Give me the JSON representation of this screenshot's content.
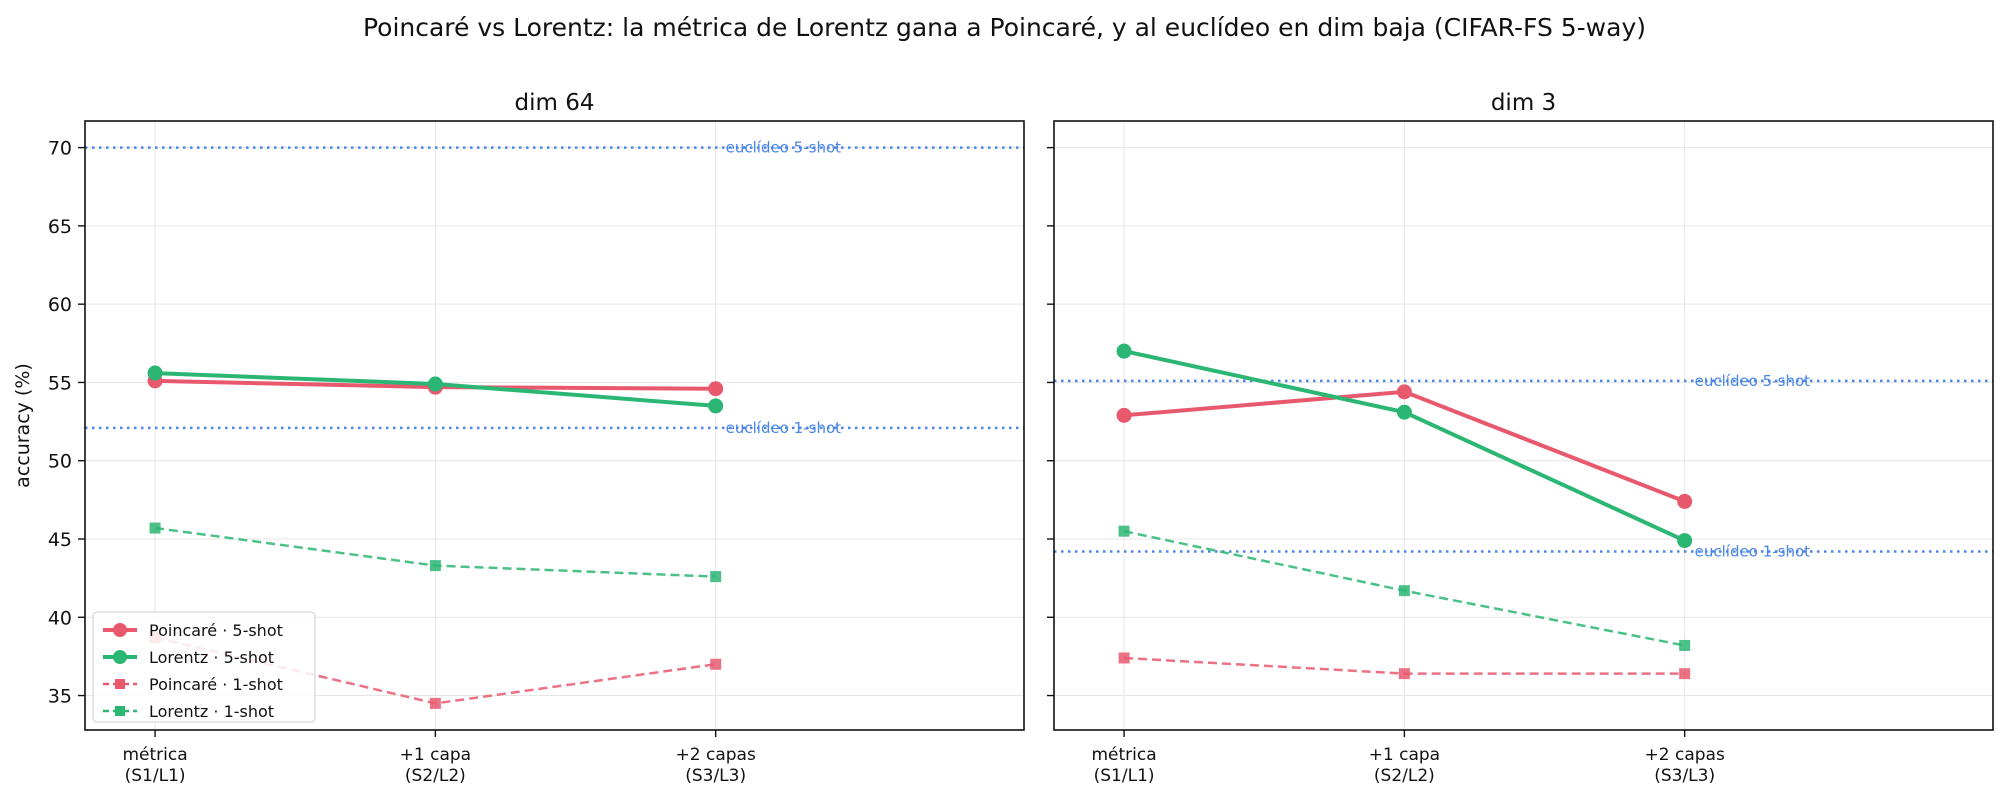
{
  "figure": {
    "suptitle": "Poincaré vs Lorentz: la métrica de Lorentz gana a Poincaré, y al euclídeo en dim baja (CIFAR-FS 5-way)"
  },
  "chart_data": [
    {
      "type": "line",
      "title": "dim 64",
      "ylabel": "accuracy (%)",
      "xlabel": "",
      "categories": [
        "métrica\n(S1/L1)",
        "+1 capa\n(S2/L2)",
        "+2 capas\n(S3/L3)"
      ],
      "xlim": [
        -0.25,
        3.1
      ],
      "ylim": [
        32.8,
        71.7
      ],
      "yticks": [
        35,
        40,
        45,
        50,
        55,
        60,
        65,
        70
      ],
      "grid": true,
      "legend": "lower-left",
      "series": [
        {
          "name": "Poincaré · 5-shot",
          "values": [
            55.1,
            54.7,
            54.6
          ],
          "color": "#e8596e",
          "style": "solid",
          "marker": "circle"
        },
        {
          "name": "Lorentz · 5-shot",
          "values": [
            55.6,
            54.9,
            53.5
          ],
          "color": "#2bb673",
          "style": "solid",
          "marker": "circle"
        },
        {
          "name": "Poincaré · 1-shot",
          "values": [
            38.7,
            34.5,
            37.0
          ],
          "color": "#e8596e",
          "style": "dashed",
          "marker": "square"
        },
        {
          "name": "Lorentz · 1-shot",
          "values": [
            45.7,
            43.3,
            42.6
          ],
          "color": "#2bb673",
          "style": "dashed",
          "marker": "square"
        }
      ],
      "reference_lines": [
        {
          "label": "euclídeo 5-shot",
          "value": 70.0,
          "color": "#4a86e8"
        },
        {
          "label": "euclídeo 1-shot",
          "value": 52.1,
          "color": "#4a86e8"
        }
      ]
    },
    {
      "type": "line",
      "title": "dim 3",
      "ylabel": "",
      "xlabel": "",
      "categories": [
        "métrica\n(S1/L1)",
        "+1 capa\n(S2/L2)",
        "+2 capas\n(S3/L3)"
      ],
      "xlim": [
        -0.25,
        3.1
      ],
      "ylim": [
        32.8,
        71.7
      ],
      "yticks": [
        35,
        40,
        45,
        50,
        55,
        60,
        65,
        70
      ],
      "grid": true,
      "legend": "none",
      "series": [
        {
          "name": "Poincaré · 5-shot",
          "values": [
            52.9,
            54.4,
            47.4
          ],
          "color": "#e8596e",
          "style": "solid",
          "marker": "circle"
        },
        {
          "name": "Lorentz · 5-shot",
          "values": [
            57.0,
            53.1,
            44.9
          ],
          "color": "#2bb673",
          "style": "solid",
          "marker": "circle"
        },
        {
          "name": "Poincaré · 1-shot",
          "values": [
            37.4,
            36.4,
            36.4
          ],
          "color": "#e8596e",
          "style": "dashed",
          "marker": "square"
        },
        {
          "name": "Lorentz · 1-shot",
          "values": [
            45.5,
            41.7,
            38.2
          ],
          "color": "#2bb673",
          "style": "dashed",
          "marker": "square"
        }
      ],
      "reference_lines": [
        {
          "label": "euclídeo 5-shot",
          "value": 55.1,
          "color": "#4a86e8"
        },
        {
          "label": "euclídeo 1-shot",
          "value": 44.2,
          "color": "#4a86e8"
        }
      ]
    }
  ]
}
